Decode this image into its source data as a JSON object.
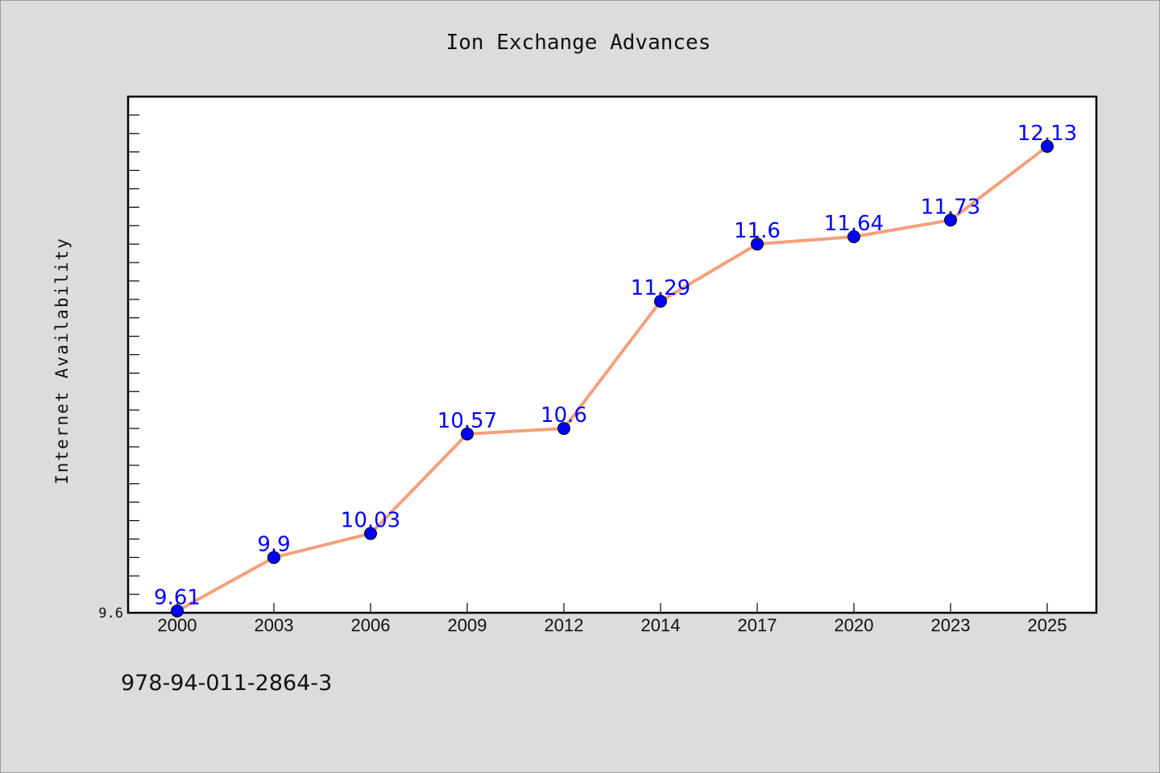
{
  "chart_data": {
    "type": "line",
    "title": "Ion Exchange Advances",
    "xlabel": "",
    "ylabel": "Internet Availability",
    "categories": [
      "2000",
      "2003",
      "2006",
      "2009",
      "2012",
      "2014",
      "2017",
      "2020",
      "2023",
      "2025"
    ],
    "series": [
      {
        "values": [
          9.61,
          9.9,
          10.03,
          10.57,
          10.6,
          11.29,
          11.6,
          11.64,
          11.73,
          12.13
        ]
      }
    ],
    "data_labels": [
      "9.61",
      "9.9",
      "10.03",
      "10.57",
      "10.6",
      "11.29",
      "11.6",
      "11.64",
      "11.73",
      "12.13"
    ],
    "ylim": [
      9.6,
      12.4
    ],
    "y_tick_labels": [
      {
        "value": 9.6,
        "label": "9.6"
      }
    ],
    "y_minor_tick_step": 0.1,
    "grid": false,
    "line_color": "#f4a07a",
    "marker_color": "#0000ff",
    "label_color": "#0000ff"
  },
  "footer": {
    "isbn": "978-94-011-2864-3"
  }
}
